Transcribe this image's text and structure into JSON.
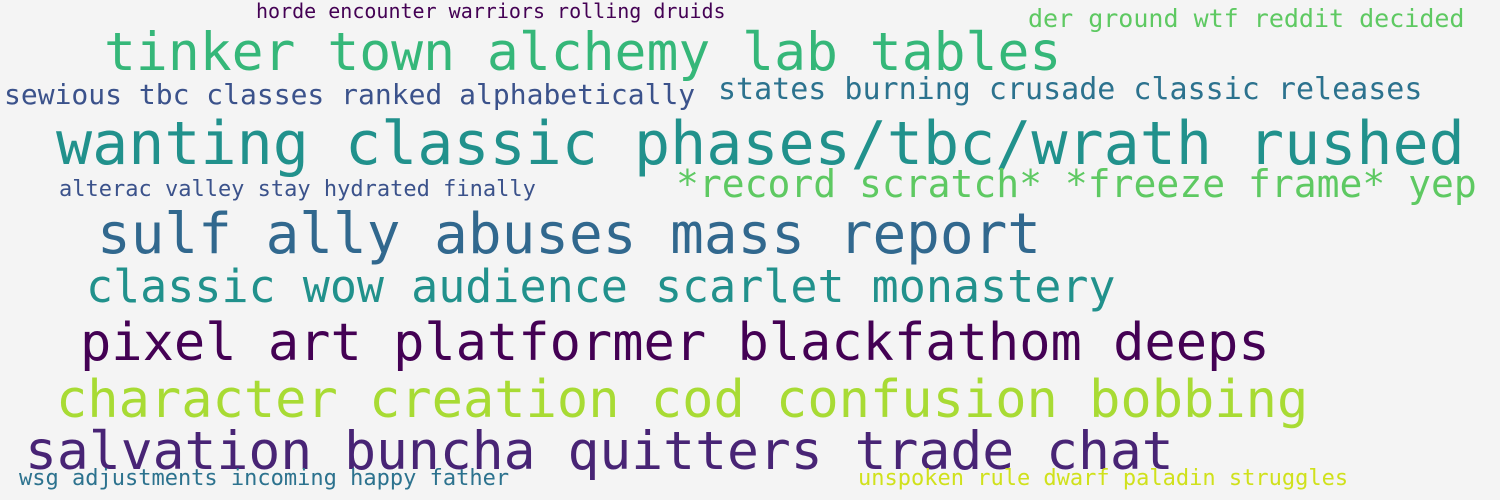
{
  "word_cloud": {
    "phrases": [
      {
        "text": "horde encounter warriors rolling druids",
        "color": "#440154"
      },
      {
        "text": "der ground wtf reddit decided",
        "color": "#5ec962"
      },
      {
        "text": "tinker town alchemy lab tables",
        "color": "#35b779"
      },
      {
        "text": "sewious tbc classes ranked alphabetically",
        "color": "#3b528b"
      },
      {
        "text": "states burning crusade classic releases",
        "color": "#2c728e"
      },
      {
        "text": "wanting classic phases/tbc/wrath rushed",
        "color": "#21918c"
      },
      {
        "text": "alterac valley stay hydrated finally",
        "color": "#3b528b"
      },
      {
        "text": "*record scratch* *freeze frame* yep",
        "color": "#5ec962"
      },
      {
        "text": "sulf ally abuses mass report",
        "color": "#31688e"
      },
      {
        "text": "classic wow audience scarlet monastery",
        "color": "#21918c"
      },
      {
        "text": "pixel art platformer blackfathom deeps",
        "color": "#440154"
      },
      {
        "text": "character creation cod confusion bobbing",
        "color": "#a8db34"
      },
      {
        "text": "salvation buncha quitters trade chat",
        "color": "#482475"
      },
      {
        "text": "wsg adjustments incoming happy father",
        "color": "#2c728e"
      },
      {
        "text": "unspoken rule dwarf paladin struggles",
        "color": "#d0e11c"
      }
    ]
  }
}
